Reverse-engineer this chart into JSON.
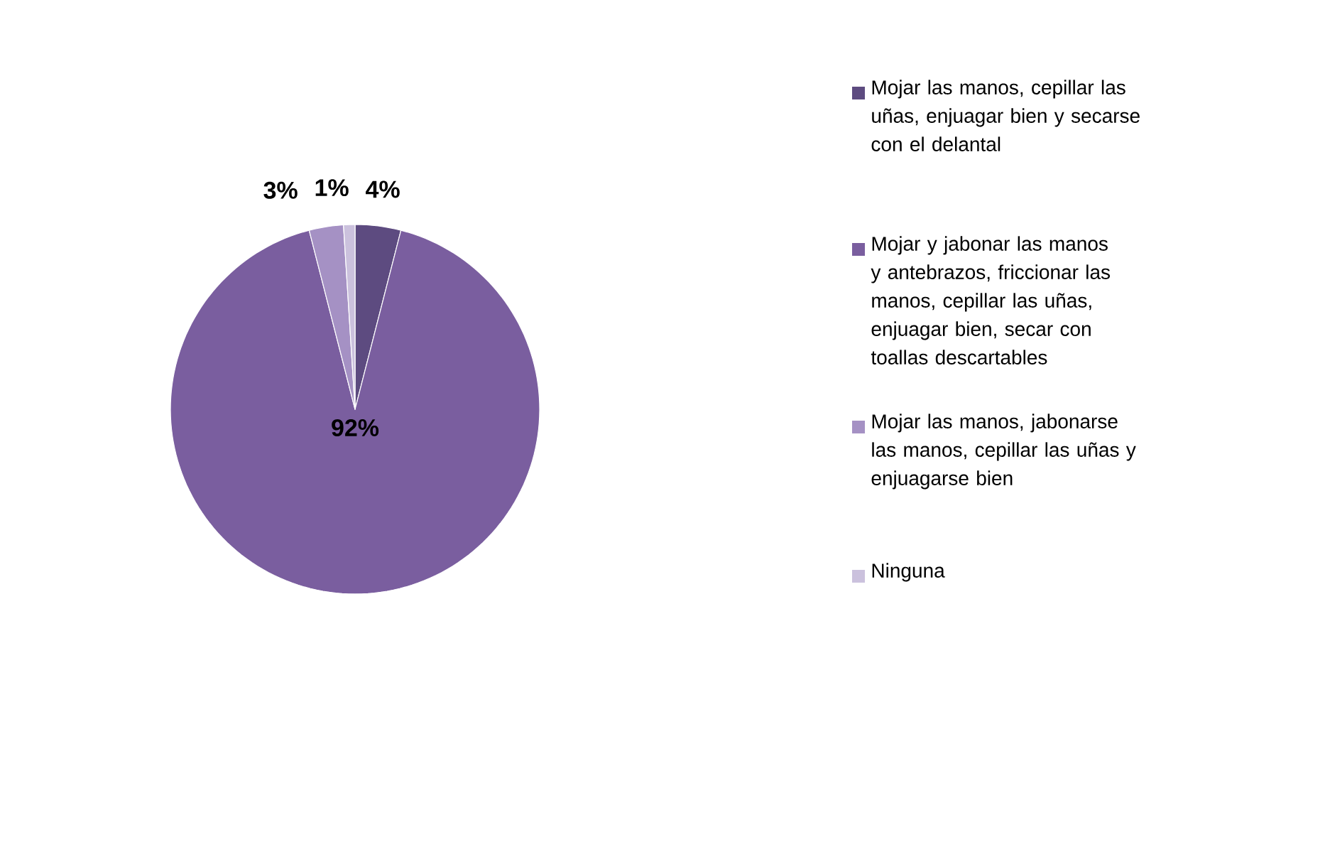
{
  "chart_data": {
    "type": "pie",
    "categories": [
      "Mojar las manos, cepillar las uñas, enjuagar bien y secarse con el delantal",
      "Mojar y jabonar las manos y antebrazos, friccionar las manos, cepillar las uñas, enjuagar bien, secar con toallas descartables",
      "Mojar las manos, jabonarse las manos, cepillar las uñas y enjuagarse bien",
      "Ninguna"
    ],
    "values": [
      4,
      92,
      3,
      1
    ],
    "colors": [
      "#5d4b80",
      "#7a5e9f",
      "#a591c4",
      "#cbc1dd"
    ],
    "value_labels": [
      "4%",
      "92%",
      "3%",
      "1%"
    ],
    "legend": "right"
  }
}
